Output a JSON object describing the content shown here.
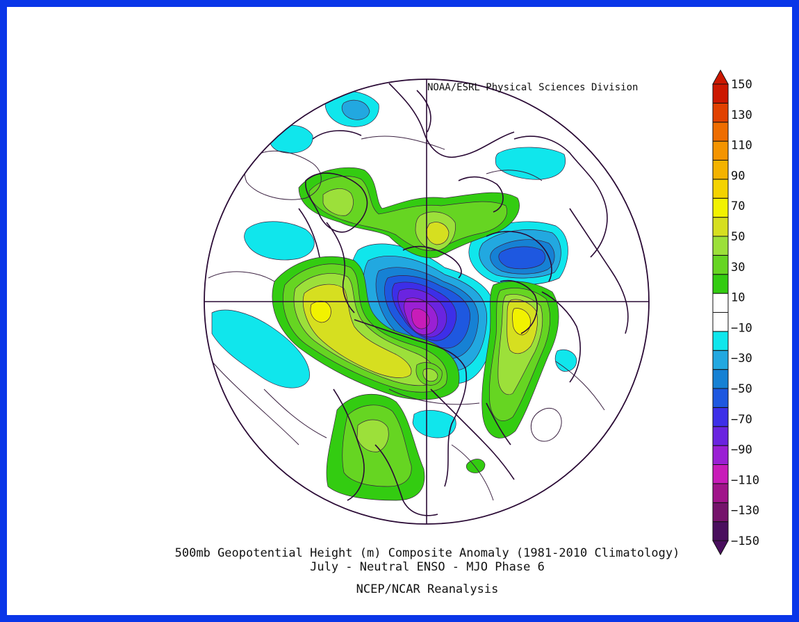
{
  "credit": "NOAA/ESRL Physical Sciences Division",
  "title": "500mb Geopotential Height (m) Composite Anomaly (1981-2010 Climatology)",
  "subtitle": "July - Neutral ENSO - MJO Phase 6",
  "source": "NCEP/NCAR Reanalysis",
  "colorbar": {
    "colors": [
      "#4a0f5e",
      "#75136b",
      "#a0148a",
      "#c81cb9",
      "#9a20d4",
      "#6a24e0",
      "#3d2fe8",
      "#1e58e0",
      "#1681d4",
      "#22a8e0",
      "#10e6ec",
      "#ffffff",
      "#ffffff",
      "#33cc11",
      "#66d522",
      "#9ce03a",
      "#d6df20",
      "#f2f200",
      "#f4d300",
      "#f4b300",
      "#f49400",
      "#ee6d00",
      "#e14100",
      "#cc1800"
    ],
    "labels": [
      "150",
      "130",
      "110",
      "90",
      "70",
      "50",
      "30",
      "10",
      "-10",
      "-30",
      "-50",
      "-70",
      "-90",
      "-110",
      "-130",
      "-150"
    ]
  },
  "anomaly_colors": {
    "pos10": "#33cc11",
    "pos30": "#66d522",
    "pos50": "#9ce03a",
    "pos70": "#d6df20",
    "pos90": "#f2f200",
    "neg10": "#10e6ec",
    "neg30": "#22a8e0",
    "neg50": "#1681d4",
    "neg70": "#1e58e0",
    "neg90": "#3d2fe8",
    "neg110": "#6a24e0",
    "neg130": "#9a20d4",
    "neg150": "#c81cb9"
  }
}
